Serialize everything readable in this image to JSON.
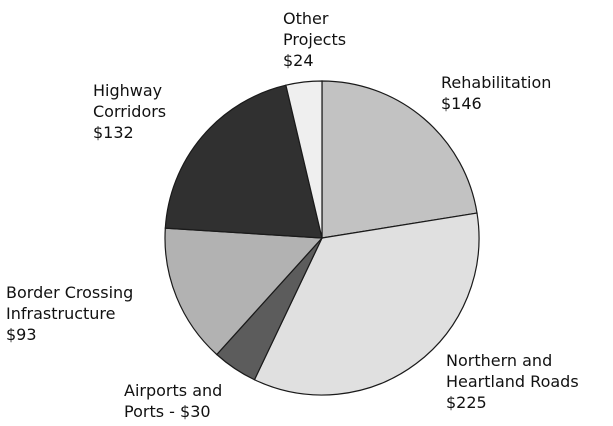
{
  "chart_data": {
    "type": "pie",
    "categories": [
      "Rehabilitation",
      "Northern and Heartland Roads",
      "Airports and Ports",
      "Border Crossing Infrastructure",
      "Highway Corridors",
      "Other Projects"
    ],
    "values": [
      146,
      225,
      30,
      93,
      132,
      24
    ],
    "value_labels": [
      "$146",
      "$225",
      "- $30",
      "$93",
      "$132",
      "$24"
    ],
    "colors": [
      "#c2c2c2",
      "#e0e0e0",
      "#5c5c5c",
      "#b2b2b2",
      "#303030",
      "#efefef"
    ]
  }
}
